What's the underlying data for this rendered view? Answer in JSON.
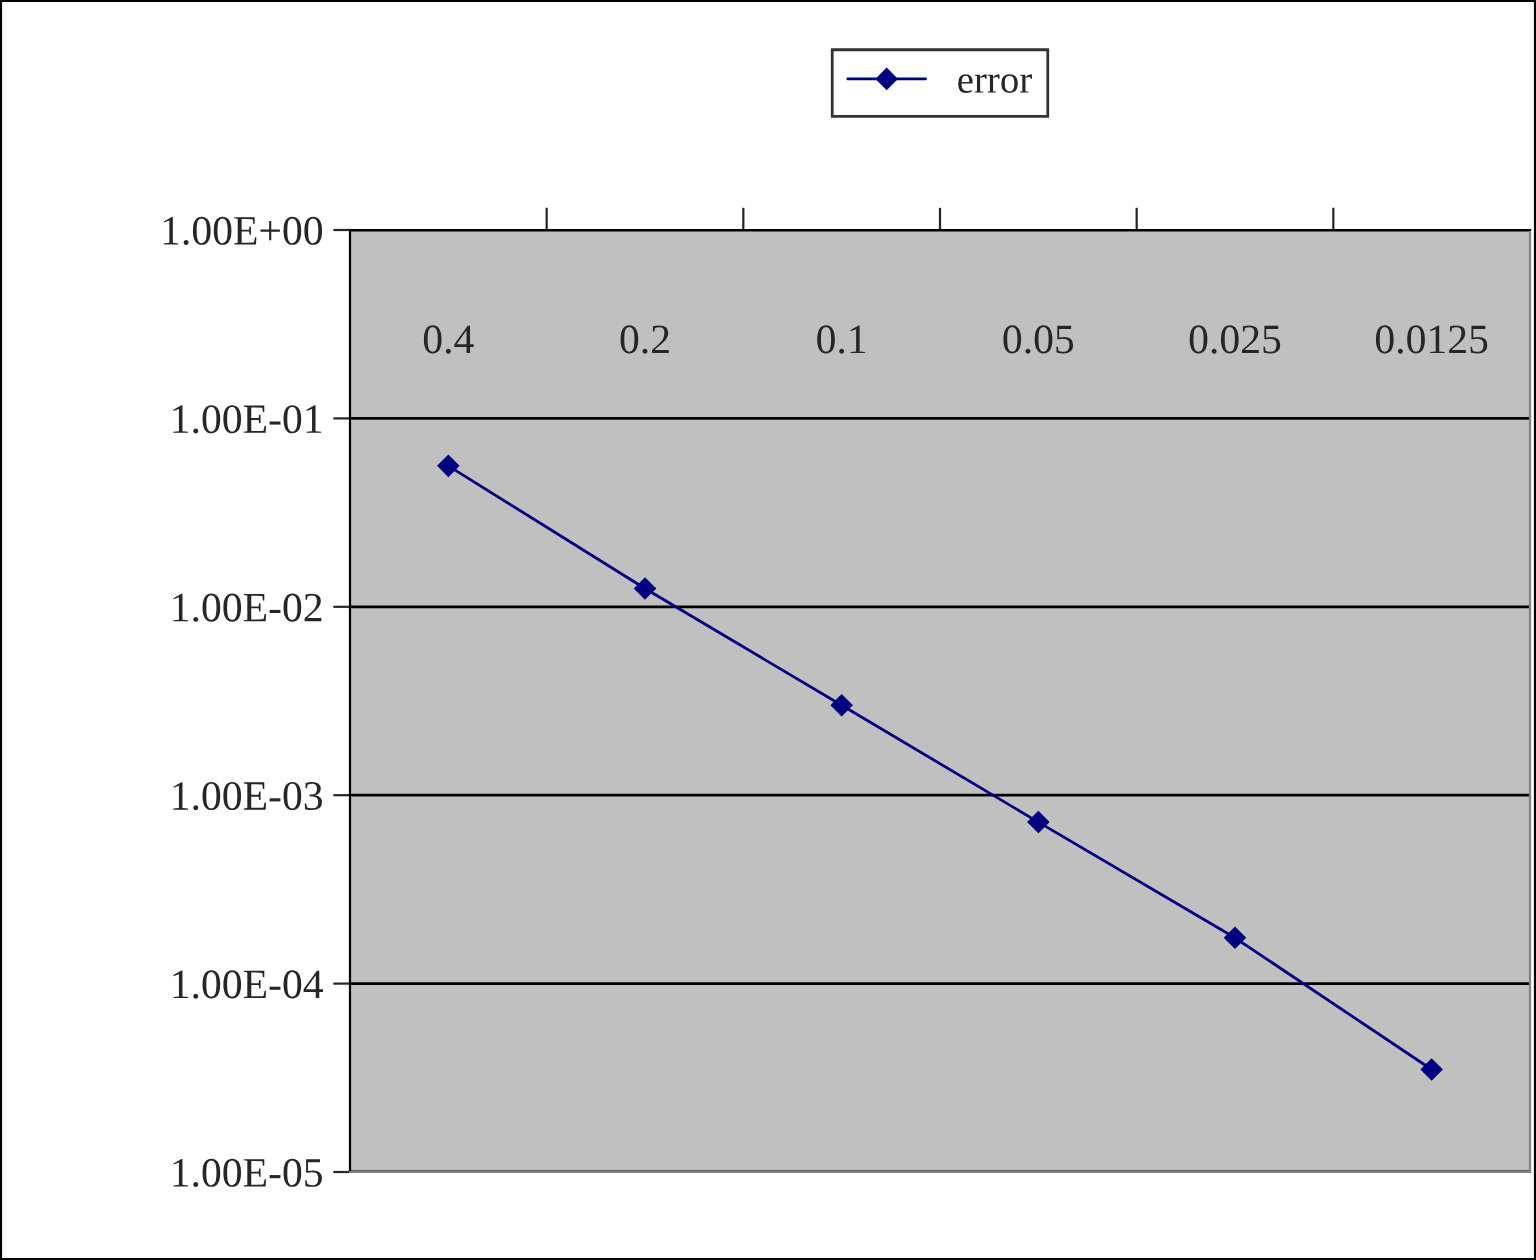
{
  "chart_data": {
    "type": "line",
    "categories": [
      "0.4",
      "0.2",
      "0.1",
      "0.05",
      "0.025",
      "0.0125"
    ],
    "series": [
      {
        "name": "error",
        "color": "#000080",
        "values": [
          0.056,
          0.0125,
          0.003,
          0.00072,
          0.000175,
          3.5e-05
        ]
      }
    ],
    "log": "y",
    "ylim": [
      1e-05,
      1
    ],
    "yticks": [
      {
        "value": 1,
        "label": "1.00E+00"
      },
      {
        "value": 0.1,
        "label": "1.00E-01"
      },
      {
        "value": 0.01,
        "label": "1.00E-02"
      },
      {
        "value": 0.001,
        "label": "1.00E-03"
      },
      {
        "value": 0.0001,
        "label": "1.00E-04"
      },
      {
        "value": 1e-05,
        "label": "1.00E-05"
      }
    ],
    "grid": "y",
    "legend": "top",
    "marker": "diamond",
    "line_style": "solid"
  }
}
